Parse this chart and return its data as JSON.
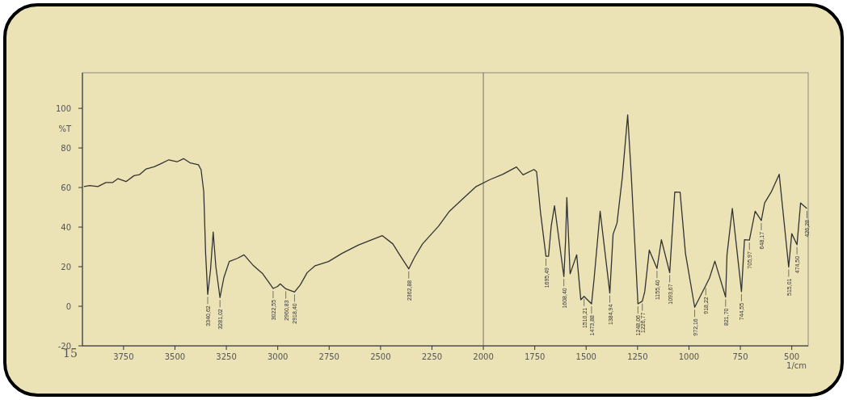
{
  "chart_data": {
    "type": "line",
    "ylabel": "%T",
    "xlabel": "1/cm",
    "xlim": [
      3950,
      420
    ],
    "ylim": [
      -20,
      118
    ],
    "xticks": [
      3750,
      3500,
      3250,
      3000,
      2750,
      2500,
      2250,
      2000,
      1750,
      1500,
      1250,
      1000,
      750,
      500
    ],
    "yticks": [
      -20,
      0,
      20,
      40,
      60,
      80,
      100
    ],
    "grid": false,
    "ref_lines": [
      {
        "axis": "x",
        "value": 2000,
        "color": "#555555"
      }
    ],
    "series": [
      {
        "color": "#333333",
        "x": [
          3943,
          3914,
          3875,
          3836,
          3804,
          3777,
          3738,
          3699,
          3673,
          3640,
          3601,
          3569,
          3530,
          3490,
          3458,
          3425,
          3386,
          3373,
          3360,
          3351,
          3340.62,
          3327,
          3314,
          3301,
          3281.02,
          3262,
          3236,
          3197,
          3164,
          3118,
          3073,
          3022.55,
          3001,
          2988,
          2960.83,
          2918.4,
          2890,
          2857,
          2818,
          2753,
          2688,
          2609,
          2557,
          2492,
          2440,
          2407,
          2362.88,
          2335,
          2296,
          2218,
          2165,
          2100,
          2035,
          1970,
          1905,
          1839,
          1807,
          1754,
          1741,
          1722,
          1695.49,
          1683,
          1670,
          1654,
          1608.4,
          1600,
          1594,
          1578,
          1546,
          1526,
          1510.21,
          1473.88,
          1461,
          1432,
          1384.94,
          1369,
          1350,
          1324,
          1298,
          1281,
          1248.06,
          1226.77,
          1215,
          1193,
          1155.4,
          1134,
          1093.67,
          1069,
          1043,
          1017,
          972.16,
          918.22,
          900,
          874,
          821.7,
          815,
          789,
          744.55,
          730,
          705.97,
          678,
          648.17,
          632,
          600,
          561,
          515.01,
          500,
          474.5,
          457,
          426.28
        ],
        "values": [
          60.5,
          61,
          60.5,
          62.5,
          62.5,
          64.5,
          63,
          66,
          66.5,
          69.4,
          70.5,
          72,
          74,
          73,
          74.6,
          72.4,
          71.5,
          69,
          58,
          27,
          6,
          18.5,
          37.5,
          20,
          4.4,
          14.5,
          22.6,
          24.2,
          26,
          20.5,
          16.4,
          9,
          10,
          11.3,
          8.8,
          7.2,
          10.9,
          17,
          20.5,
          22.6,
          26.7,
          30.9,
          33,
          35.7,
          31.5,
          26,
          18.9,
          24.7,
          31.5,
          40.5,
          48,
          54.3,
          60.5,
          63.9,
          66.7,
          70.4,
          66.4,
          69.1,
          68,
          47.4,
          25.3,
          25.3,
          40.5,
          50.8,
          15,
          33.6,
          55,
          16.4,
          26,
          3.3,
          5,
          1.2,
          14.3,
          48,
          6.7,
          36.4,
          42,
          65.3,
          96.7,
          67,
          1.2,
          2.6,
          7.4,
          28.4,
          19.1,
          33.6,
          17,
          57.7,
          57.6,
          26.7,
          -0.5,
          10.5,
          14.3,
          22.8,
          4.7,
          26,
          49.4,
          7.4,
          33.6,
          33.4,
          48,
          43.3,
          52.2,
          57.7,
          66.7,
          19.8,
          36.7,
          31.1,
          52.2,
          49.4
        ]
      }
    ],
    "annotations": [
      {
        "text": "3340,62",
        "x": 3340.62,
        "y": 6
      },
      {
        "text": "3281,02",
        "x": 3281.02,
        "y": 4.4
      },
      {
        "text": "3022,55",
        "x": 3022.55,
        "y": 9
      },
      {
        "text": "2960,83",
        "x": 2960.83,
        "y": 8.8
      },
      {
        "text": "2918,40",
        "x": 2918.4,
        "y": 7.2
      },
      {
        "text": "2362,88",
        "x": 2362.88,
        "y": 18.9
      },
      {
        "text": "1695,49",
        "x": 1695.49,
        "y": 25.3
      },
      {
        "text": "1608,40",
        "x": 1608.4,
        "y": 15
      },
      {
        "text": "1510,21",
        "x": 1510.21,
        "y": 5
      },
      {
        "text": "1473,88",
        "x": 1473.88,
        "y": 1.2
      },
      {
        "text": "1384,94",
        "x": 1384.94,
        "y": 6.7
      },
      {
        "text": "1248,06",
        "x": 1248.06,
        "y": 1.2
      },
      {
        "text": "1226,77",
        "x": 1226.77,
        "y": 2.6
      },
      {
        "text": "1155,40",
        "x": 1155.4,
        "y": 19.1
      },
      {
        "text": "1093,67",
        "x": 1093.67,
        "y": 17
      },
      {
        "text": "972,16",
        "x": 972.16,
        "y": -0.5
      },
      {
        "text": "918,22",
        "x": 918.22,
        "y": 10.5
      },
      {
        "text": "821,70",
        "x": 821.7,
        "y": 4.7
      },
      {
        "text": "744,55",
        "x": 744.55,
        "y": 7.4
      },
      {
        "text": "705,97",
        "x": 705.97,
        "y": 33.4
      },
      {
        "text": "648,17",
        "x": 648.17,
        "y": 43.3
      },
      {
        "text": "515,01",
        "x": 515.01,
        "y": 19.8
      },
      {
        "text": "474,50",
        "x": 474.5,
        "y": 31.1
      },
      {
        "text": "426,28",
        "x": 426.28,
        "y": 49.4
      },
      "15"
    ]
  }
}
